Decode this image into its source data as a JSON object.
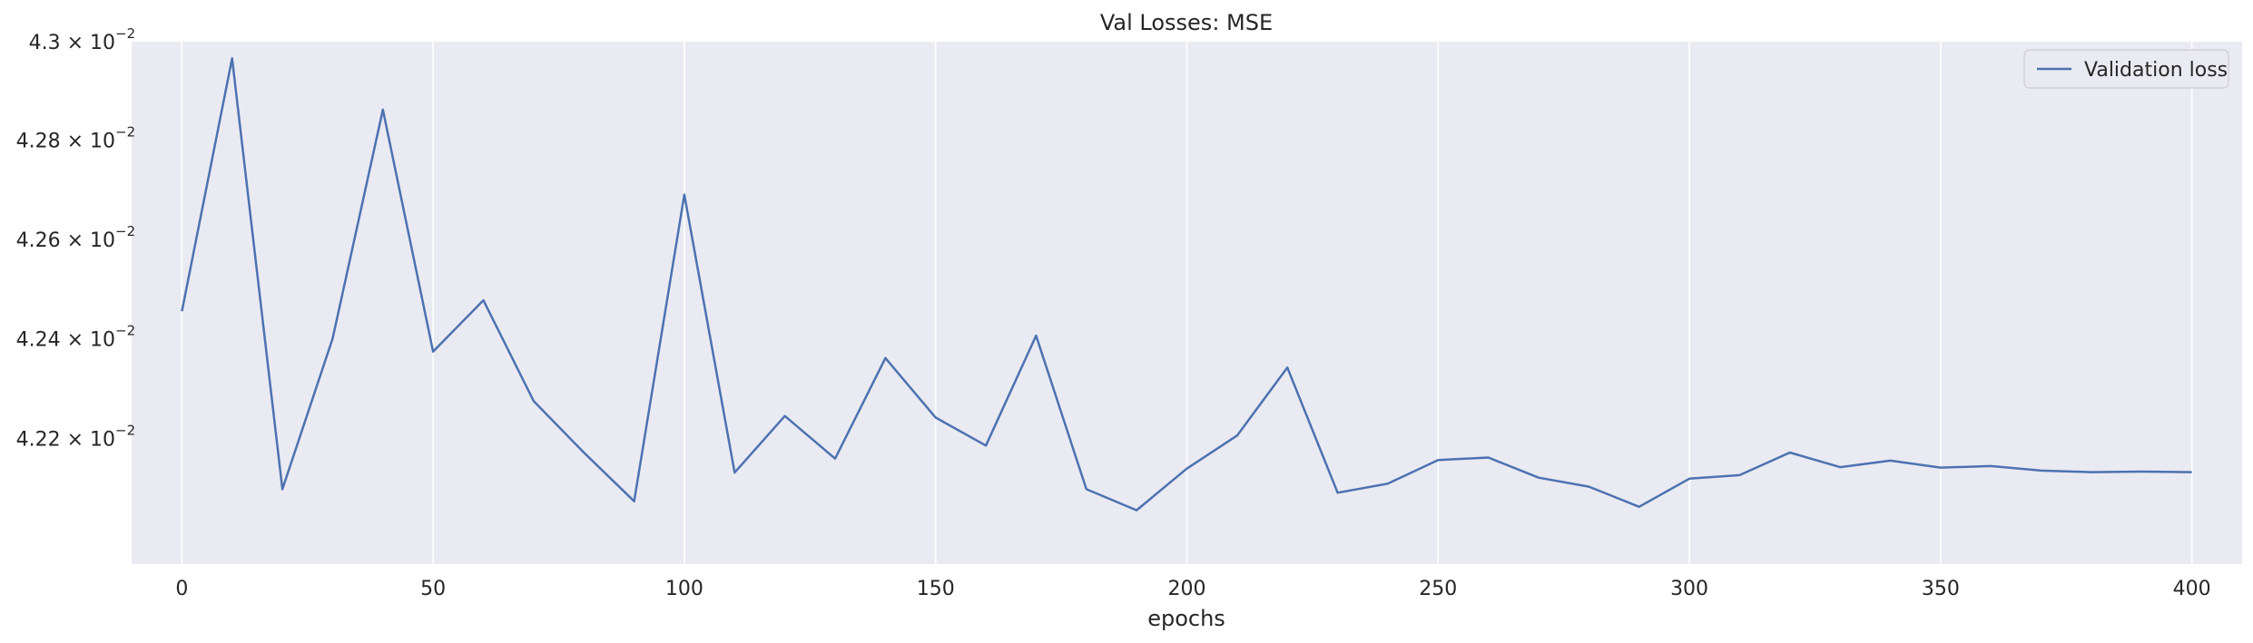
{
  "chart_data": {
    "type": "line",
    "title": "Val Losses:  MSE",
    "xlabel": "epochs",
    "ylabel": "",
    "yscale": "log",
    "grid": "vertical",
    "legend_position": "top-right",
    "xlim": [
      -10,
      410
    ],
    "ylim": [
      0.04195,
      0.043
    ],
    "x_ticks": [
      0,
      50,
      100,
      150,
      200,
      250,
      300,
      350,
      400
    ],
    "x_tick_labels": [
      "0",
      "50",
      "100",
      "150",
      "200",
      "250",
      "300",
      "350",
      "400"
    ],
    "y_ticks": [
      0.0422,
      0.0424,
      0.0426,
      0.0428,
      0.043
    ],
    "y_tick_mantissas": [
      "4.22",
      "4.24",
      "4.26",
      "4.28",
      "4.3"
    ],
    "y_tick_base": "× 10",
    "y_tick_exponent": "−2",
    "colors": {
      "background": "#eaeaf2",
      "grid": "#ffffff",
      "line": "#4c72b0"
    },
    "series": [
      {
        "name": "Validation loss",
        "x": [
          0,
          10,
          20,
          30,
          40,
          50,
          60,
          70,
          80,
          90,
          100,
          110,
          120,
          130,
          140,
          150,
          160,
          170,
          180,
          190,
          200,
          210,
          220,
          230,
          240,
          250,
          260,
          270,
          280,
          290,
          300,
          310,
          320,
          330,
          340,
          350,
          360,
          370,
          380,
          390,
          400
        ],
        "values": [
          0.042455,
          0.042966,
          0.042099,
          0.0424,
          0.042862,
          0.042374,
          0.042477,
          0.042275,
          0.042172,
          0.042075,
          0.04269,
          0.042132,
          0.042245,
          0.04216,
          0.042361,
          0.042242,
          0.042186,
          0.042406,
          0.042099,
          0.042057,
          0.04214,
          0.042206,
          0.042342,
          0.042092,
          0.04211,
          0.042157,
          0.042162,
          0.042122,
          0.042104,
          0.042064,
          0.04212,
          0.042127,
          0.042172,
          0.042143,
          0.042156,
          0.042142,
          0.042145,
          0.042136,
          0.042133,
          0.042134,
          0.042133
        ]
      }
    ]
  }
}
